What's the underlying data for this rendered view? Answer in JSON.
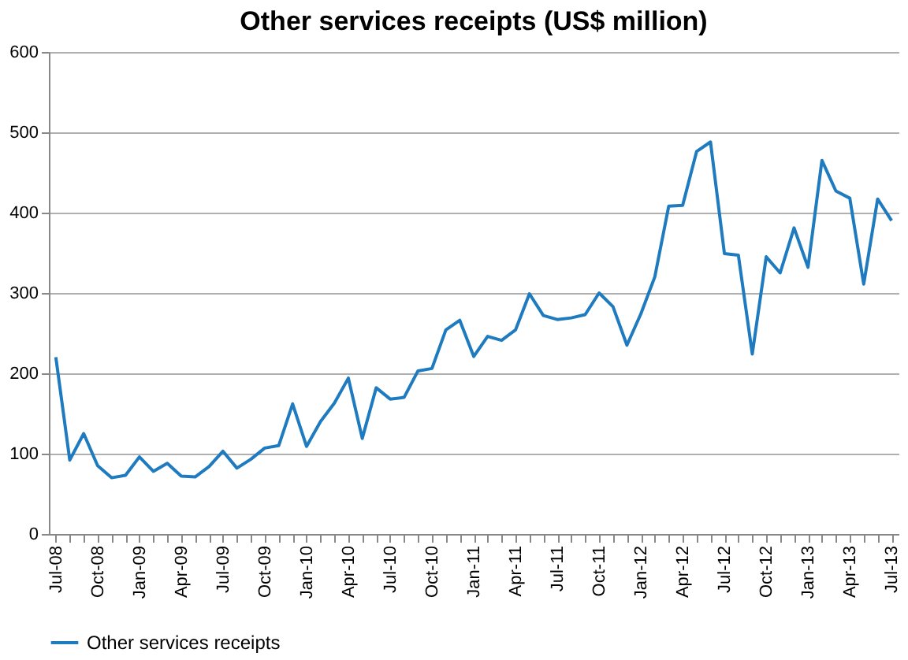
{
  "chart_data": {
    "type": "line",
    "title": "Other services receipts (US$ million)",
    "categories": [
      "Jul-08",
      null,
      null,
      "Oct-08",
      null,
      null,
      "Jan-09",
      null,
      null,
      "Apr-09",
      null,
      null,
      "Jul-09",
      null,
      null,
      "Oct-09",
      null,
      null,
      "Jan-10",
      null,
      null,
      "Apr-10",
      null,
      null,
      "Jul-10",
      null,
      null,
      "Oct-10",
      null,
      null,
      "Jan-11",
      null,
      null,
      "Apr-11",
      null,
      null,
      "Jul-11",
      null,
      null,
      "Oct-11",
      null,
      null,
      "Jan-12",
      null,
      null,
      "Apr-12",
      null,
      null,
      "Jul-12",
      null,
      null,
      "Oct-12",
      null,
      null,
      "Jan-13",
      null,
      null,
      "Apr-13",
      null,
      null,
      "Jul-13"
    ],
    "series": [
      {
        "name": "Other services receipts",
        "color": "#1f7bbf",
        "values": [
          220,
          92,
          125,
          85,
          70,
          73,
          96,
          78,
          88,
          72,
          71,
          84,
          103,
          82,
          93,
          107,
          110,
          162,
          109,
          140,
          163,
          194,
          119,
          182,
          168,
          170,
          203,
          206,
          254,
          266,
          221,
          246,
          241,
          254,
          299,
          272,
          267,
          269,
          273,
          300,
          283,
          235,
          274,
          320,
          408,
          409,
          476,
          488,
          349,
          347,
          224,
          345,
          325,
          381,
          332,
          465,
          427,
          418,
          311,
          417,
          390
        ]
      }
    ],
    "ylim": [
      0,
      600
    ],
    "yticks": [
      0,
      100,
      200,
      300,
      400,
      500,
      600
    ],
    "grid": "y",
    "legend": "bottom",
    "marker": "none",
    "line_style": "solid"
  }
}
